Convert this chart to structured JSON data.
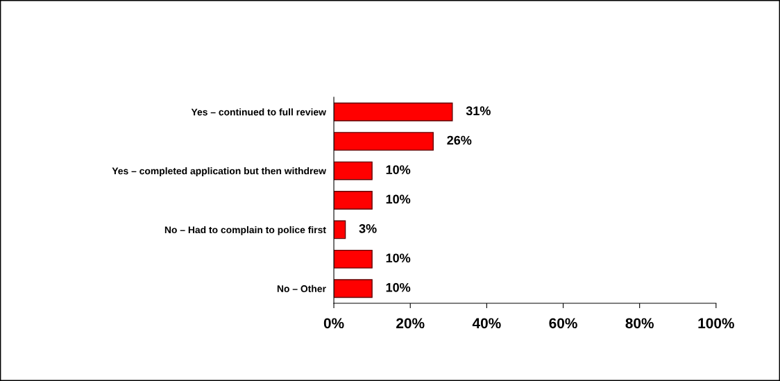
{
  "chart_data": {
    "type": "bar",
    "orientation": "horizontal",
    "categories": [
      "Yes – continued to full review",
      null,
      "Yes – completed application but then withdrew",
      null,
      "No – Had to complain to police first",
      null,
      "No – Other"
    ],
    "values": [
      31,
      26,
      10,
      10,
      3,
      10,
      10
    ],
    "value_labels": [
      "31%",
      "26%",
      "10%",
      "10%",
      "3%",
      "10%",
      "10%"
    ],
    "color": "#ff0000",
    "xlim": [
      0,
      100
    ],
    "xticks": [
      {
        "value": 0,
        "label": "0%"
      },
      {
        "value": 20,
        "label": "20%"
      },
      {
        "value": 40,
        "label": "40%"
      },
      {
        "value": 60,
        "label": "60%"
      },
      {
        "value": 80,
        "label": "80%"
      },
      {
        "value": 100,
        "label": "100%"
      }
    ],
    "grid": false,
    "legend": false
  }
}
